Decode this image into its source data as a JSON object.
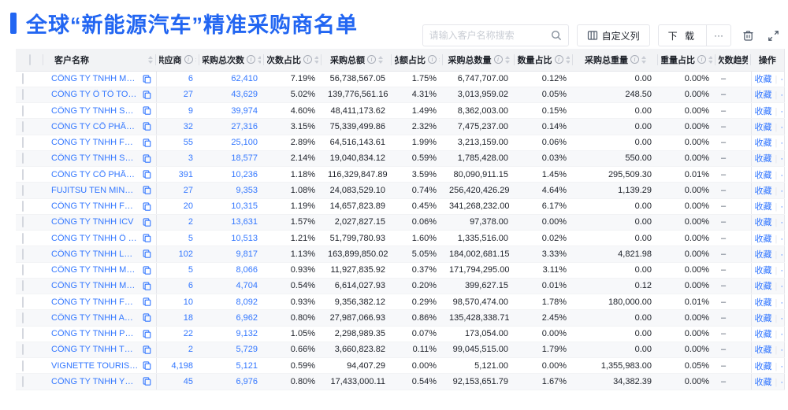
{
  "page": {
    "title": "全球“新能源汽车”精准采购商名单"
  },
  "toolbar": {
    "search_placeholder": "请输入客户名称搜索",
    "search_icon": "magnifier",
    "customize_columns_label": "自定义列",
    "download_label": "下 载",
    "more_label": "···",
    "delete_icon": "trash",
    "fullscreen_icon": "expand"
  },
  "table": {
    "columns": [
      {
        "key": "checkbox",
        "label": "",
        "info": false,
        "sort": false
      },
      {
        "key": "name",
        "label": "客户名称",
        "info": false,
        "sort": true
      },
      {
        "key": "supplier",
        "label": "供应商",
        "info": true,
        "sort": true
      },
      {
        "key": "count",
        "label": "采购总次数",
        "info": true,
        "sort": true
      },
      {
        "key": "count_pct",
        "label": "次数占比",
        "info": true,
        "sort": true
      },
      {
        "key": "amount",
        "label": "采购总额",
        "info": true,
        "sort": true
      },
      {
        "key": "amount_pct",
        "label": "总额占比",
        "info": true,
        "sort": true
      },
      {
        "key": "qty",
        "label": "采购总数量",
        "info": true,
        "sort": true
      },
      {
        "key": "qty_pct",
        "label": "数量占比",
        "info": true,
        "sort": true
      },
      {
        "key": "weight",
        "label": "采购总重量",
        "info": true,
        "sort": true
      },
      {
        "key": "weight_pct",
        "label": "重量占比",
        "info": true,
        "sort": true
      },
      {
        "key": "trend",
        "label": "次数趋势",
        "info": false,
        "sort": false
      },
      {
        "key": "actions",
        "label": "操作",
        "info": false,
        "sort": false
      }
    ],
    "action_labels": {
      "favorite": "收藏",
      "more": "···"
    },
    "rows": [
      {
        "name": "CÔNG TY TNHH MTV SẢN XUẤ...",
        "supplier": "6",
        "count": "62,410",
        "count_pct": "7.19%",
        "amount": "56,738,567.05",
        "amount_pct": "1.75%",
        "qty": "6,747,707.00",
        "qty_pct": "0.12%",
        "weight": "0.00",
        "weight_pct": "0.00%",
        "trend": "–"
      },
      {
        "name": "CÔNG TY Ô TÔ TOYOTA VIỆT ...",
        "supplier": "27",
        "count": "43,629",
        "count_pct": "5.02%",
        "amount": "139,776,561.16",
        "amount_pct": "4.31%",
        "qty": "3,013,959.02",
        "qty_pct": "0.05%",
        "weight": "248.50",
        "weight_pct": "0.00%",
        "trend": "–"
      },
      {
        "name": "CÔNG TY TNHH SẢN XUẤT VÀ ...",
        "supplier": "9",
        "count": "39,974",
        "count_pct": "4.60%",
        "amount": "48,411,173.62",
        "amount_pct": "1.49%",
        "qty": "8,362,003.00",
        "qty_pct": "0.15%",
        "weight": "0.00",
        "weight_pct": "0.00%",
        "trend": "–"
      },
      {
        "name": "CÔNG TY CỔ PHẦN SẢN XUẤT...",
        "supplier": "32",
        "count": "27,316",
        "count_pct": "3.15%",
        "amount": "75,339,499.86",
        "amount_pct": "2.32%",
        "qty": "7,475,237.00",
        "qty_pct": "0.14%",
        "weight": "0.00",
        "weight_pct": "0.00%",
        "trend": "–"
      },
      {
        "name": "CÔNG TY TNHH FORD VIỆT NAM",
        "supplier": "55",
        "count": "25,100",
        "count_pct": "2.89%",
        "amount": "64,516,143.61",
        "amount_pct": "1.99%",
        "qty": "3,213,159.00",
        "qty_pct": "0.06%",
        "weight": "0.00",
        "weight_pct": "0.00%",
        "trend": "–"
      },
      {
        "name": "CÔNG TY TNHH SẢN XUẤT VÀ ...",
        "supplier": "3",
        "count": "18,577",
        "count_pct": "2.14%",
        "amount": "19,040,834.12",
        "amount_pct": "0.59%",
        "qty": "1,785,428.00",
        "qty_pct": "0.03%",
        "weight": "550.00",
        "weight_pct": "0.00%",
        "trend": "–"
      },
      {
        "name": "CÔNG TY CỔ PHẦN SẢN XUẤT...",
        "supplier": "391",
        "count": "10,236",
        "count_pct": "1.18%",
        "amount": "116,329,847.89",
        "amount_pct": "3.59%",
        "qty": "80,090,911.15",
        "qty_pct": "1.45%",
        "weight": "295,509.30",
        "weight_pct": "0.01%",
        "trend": "–"
      },
      {
        "name": "FUJITSU TEN MINDA INDIA PVT...",
        "supplier": "27",
        "count": "9,353",
        "count_pct": "1.08%",
        "amount": "24,083,529.10",
        "amount_pct": "0.74%",
        "qty": "256,420,426.29",
        "qty_pct": "4.64%",
        "weight": "1,139.29",
        "weight_pct": "0.00%",
        "trend": "–"
      },
      {
        "name": "CÔNG TY TNHH FURUKAWA A...",
        "supplier": "20",
        "count": "10,315",
        "count_pct": "1.19%",
        "amount": "14,657,823.89",
        "amount_pct": "0.45%",
        "qty": "341,268,232.00",
        "qty_pct": "6.17%",
        "weight": "0.00",
        "weight_pct": "0.00%",
        "trend": "–"
      },
      {
        "name": "CÔNG TY TNHH ICV",
        "supplier": "2",
        "count": "13,631",
        "count_pct": "1.57%",
        "amount": "2,027,827.15",
        "amount_pct": "0.06%",
        "qty": "97,378.00",
        "qty_pct": "0.00%",
        "weight": "0.00",
        "weight_pct": "0.00%",
        "trend": "–"
      },
      {
        "name": "CÔNG TY TNHH Ô TÔ MITSUBI...",
        "supplier": "5",
        "count": "10,513",
        "count_pct": "1.21%",
        "amount": "51,799,780.93",
        "amount_pct": "1.60%",
        "qty": "1,335,516.00",
        "qty_pct": "0.02%",
        "weight": "0.00",
        "weight_pct": "0.00%",
        "trend": "–"
      },
      {
        "name": "CÔNG TY TNHH LG ELECTRON...",
        "supplier": "102",
        "count": "9,817",
        "count_pct": "1.13%",
        "amount": "163,899,850.02",
        "amount_pct": "5.05%",
        "qty": "184,002,681.15",
        "qty_pct": "3.33%",
        "weight": "4,821.98",
        "weight_pct": "0.00%",
        "trend": "–"
      },
      {
        "name": "CÔNG TY TNHH MỘT THÀNH V...",
        "supplier": "5",
        "count": "8,066",
        "count_pct": "0.93%",
        "amount": "11,927,835.92",
        "amount_pct": "0.37%",
        "qty": "171,794,295.00",
        "qty_pct": "3.11%",
        "weight": "0.00",
        "weight_pct": "0.00%",
        "trend": "–"
      },
      {
        "name": "CÔNG TY TNHH MERCEDES–B...",
        "supplier": "6",
        "count": "4,704",
        "count_pct": "0.54%",
        "amount": "6,614,027.93",
        "amount_pct": "0.20%",
        "qty": "399,627.15",
        "qty_pct": "0.01%",
        "weight": "0.12",
        "weight_pct": "0.00%",
        "trend": "–"
      },
      {
        "name": "CÔNG TY TNHH FURUKAWA A...",
        "supplier": "10",
        "count": "8,092",
        "count_pct": "0.93%",
        "amount": "9,356,382.12",
        "amount_pct": "0.29%",
        "qty": "98,570,474.00",
        "qty_pct": "1.78%",
        "weight": "180,000.00",
        "weight_pct": "0.01%",
        "trend": "–"
      },
      {
        "name": "CÔNG TY TNHH AUTEL VIỆT N...",
        "supplier": "18",
        "count": "6,962",
        "count_pct": "0.80%",
        "amount": "27,987,066.93",
        "amount_pct": "0.86%",
        "qty": "135,428,338.71",
        "qty_pct": "2.45%",
        "weight": "0.00",
        "weight_pct": "0.00%",
        "trend": "–"
      },
      {
        "name": "CÔNG TY TNHH PHÂN PHỐI T...",
        "supplier": "22",
        "count": "9,132",
        "count_pct": "1.05%",
        "amount": "2,298,989.35",
        "amount_pct": "0.07%",
        "qty": "173,054.00",
        "qty_pct": "0.00%",
        "weight": "0.00",
        "weight_pct": "0.00%",
        "trend": "–"
      },
      {
        "name": "CÔNG TY TNHH THN AUTOPAR...",
        "supplier": "2",
        "count": "5,729",
        "count_pct": "0.66%",
        "amount": "3,660,823.82",
        "amount_pct": "0.11%",
        "qty": "99,045,515.00",
        "qty_pct": "1.79%",
        "weight": "0.00",
        "weight_pct": "0.00%",
        "trend": "–"
      },
      {
        "name": "VIGNETTE TOURISTIQUE G UNI...",
        "supplier": "4,198",
        "count": "5,121",
        "count_pct": "0.59%",
        "amount": "94,407.29",
        "amount_pct": "0.00%",
        "qty": "5,121.00",
        "qty_pct": "0.00%",
        "weight": "1,355,983.00",
        "weight_pct": "0.05%",
        "trend": "–"
      },
      {
        "name": "CÔNG TY TNHH YOKOWO VIỆT...",
        "supplier": "45",
        "count": "6,976",
        "count_pct": "0.80%",
        "amount": "17,433,000.11",
        "amount_pct": "0.54%",
        "qty": "92,153,651.79",
        "qty_pct": "1.67%",
        "weight": "34,382.39",
        "weight_pct": "0.00%",
        "trend": "–"
      }
    ]
  }
}
